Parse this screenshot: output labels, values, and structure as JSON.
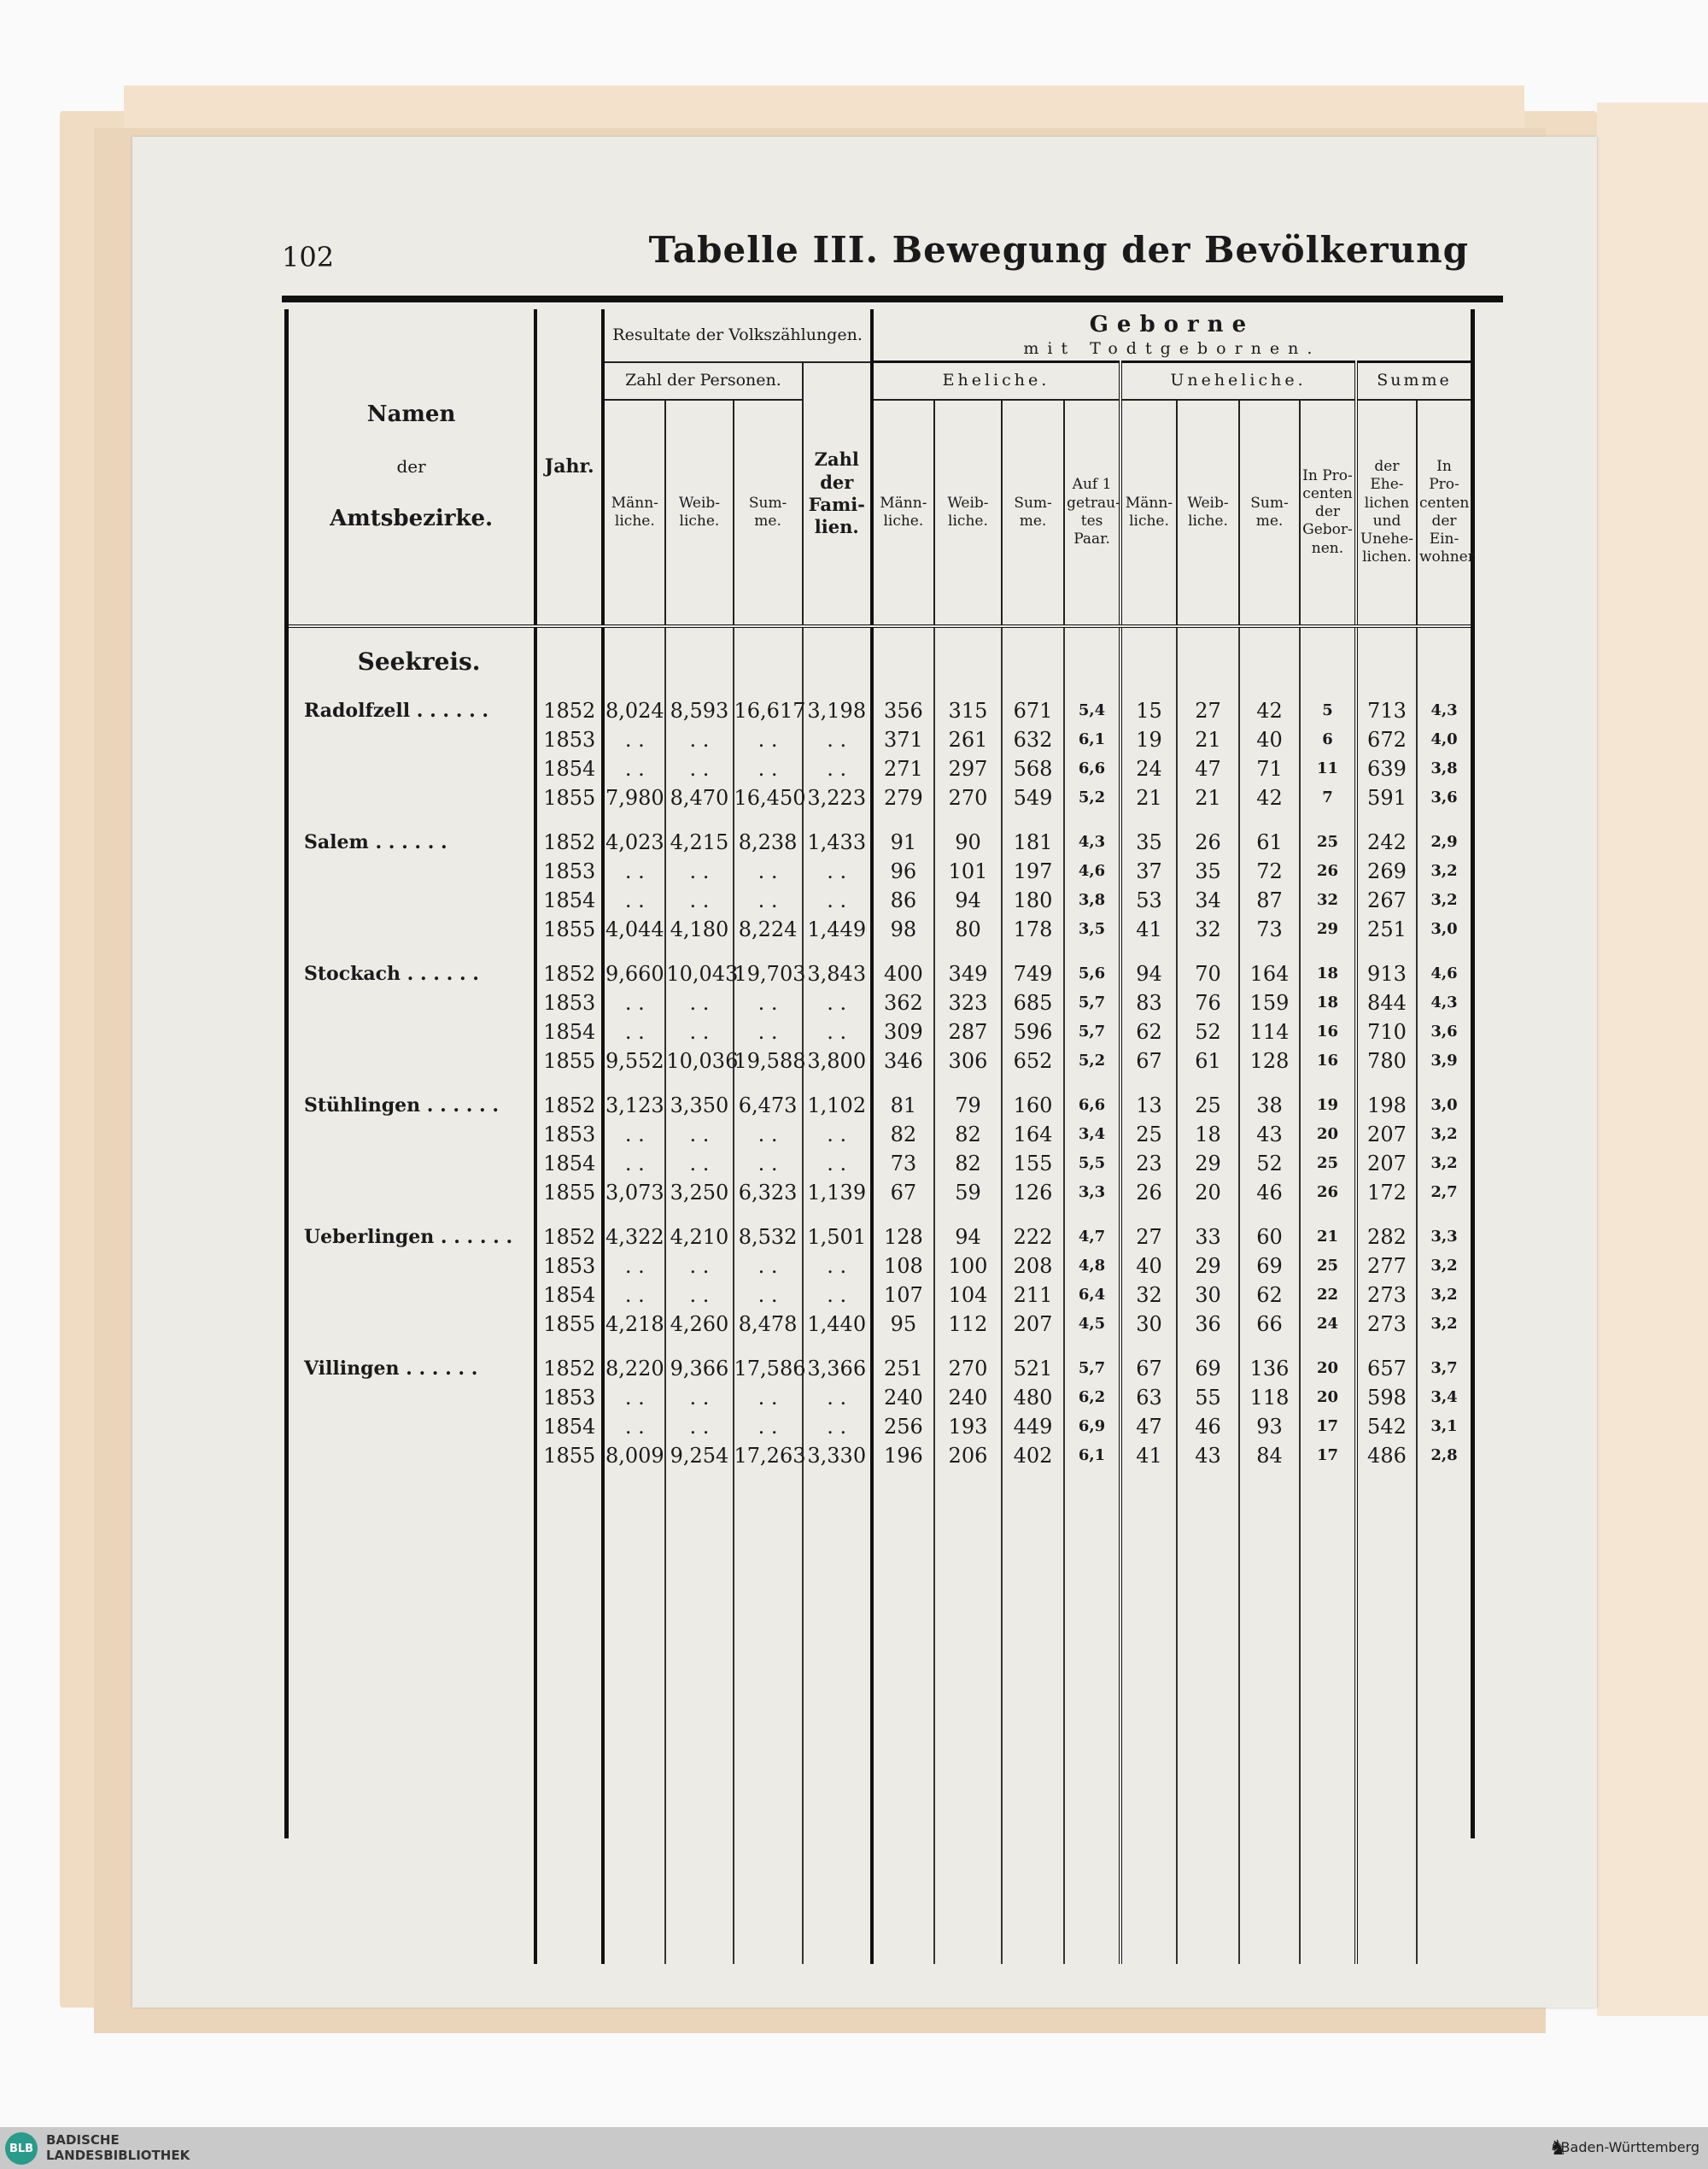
{
  "page": {
    "number": "102",
    "title": "Tabelle III. Bewegung der Bevölkerung"
  },
  "header": {
    "name": [
      "Namen",
      "der",
      "Amtsbezirke."
    ],
    "jahr": "Jahr.",
    "volks": "Resultate der Volkszählungen.",
    "personen": "Zahl der Personen.",
    "familien": "Zahl der Fami-lien.",
    "geborne": "Geborne",
    "geborne_sub": "mit Todtgebornen.",
    "eheliche": "Eheliche.",
    "uneheliche": "Uneheliche.",
    "summe": "Summe",
    "cols": [
      "Männ-liche.",
      "Weib-liche.",
      "Sum-me.",
      "Männ-liche.",
      "Weib-liche.",
      "Sum-me.",
      "Auf 1 getrau-tes Paar.",
      "Männ-liche.",
      "Weib-liche.",
      "Sum-me.",
      "In Pro-centen der Gebor-nen.",
      "der Ehe-lichen und Unehe-lichen.",
      "In Pro-centen der Ein-wohner"
    ]
  },
  "region": "Seekreis.",
  "groups": [
    {
      "name": "Radolfzell",
      "rows": [
        [
          "1852",
          "8,024",
          "8,593",
          "16,617",
          "3,198",
          "356",
          "315",
          "671",
          "5,4",
          "15",
          "27",
          "42",
          "5",
          "713",
          "4,3"
        ],
        [
          "1853",
          "..",
          "..",
          "..",
          "..",
          "371",
          "261",
          "632",
          "6,1",
          "19",
          "21",
          "40",
          "6",
          "672",
          "4,0"
        ],
        [
          "1854",
          "..",
          "..",
          "..",
          "..",
          "271",
          "297",
          "568",
          "6,6",
          "24",
          "47",
          "71",
          "11",
          "639",
          "3,8"
        ],
        [
          "1855",
          "7,980",
          "8,470",
          "16,450",
          "3,223",
          "279",
          "270",
          "549",
          "5,2",
          "21",
          "21",
          "42",
          "7",
          "591",
          "3,6"
        ]
      ]
    },
    {
      "name": "Salem",
      "rows": [
        [
          "1852",
          "4,023",
          "4,215",
          "8,238",
          "1,433",
          "91",
          "90",
          "181",
          "4,3",
          "35",
          "26",
          "61",
          "25",
          "242",
          "2,9"
        ],
        [
          "1853",
          "..",
          "..",
          "..",
          "..",
          "96",
          "101",
          "197",
          "4,6",
          "37",
          "35",
          "72",
          "26",
          "269",
          "3,2"
        ],
        [
          "1854",
          "..",
          "..",
          "..",
          "..",
          "86",
          "94",
          "180",
          "3,8",
          "53",
          "34",
          "87",
          "32",
          "267",
          "3,2"
        ],
        [
          "1855",
          "4,044",
          "4,180",
          "8,224",
          "1,449",
          "98",
          "80",
          "178",
          "3,5",
          "41",
          "32",
          "73",
          "29",
          "251",
          "3,0"
        ]
      ]
    },
    {
      "name": "Stockach",
      "rows": [
        [
          "1852",
          "9,660",
          "10,043",
          "19,703",
          "3,843",
          "400",
          "349",
          "749",
          "5,6",
          "94",
          "70",
          "164",
          "18",
          "913",
          "4,6"
        ],
        [
          "1853",
          "..",
          "..",
          "..",
          "..",
          "362",
          "323",
          "685",
          "5,7",
          "83",
          "76",
          "159",
          "18",
          "844",
          "4,3"
        ],
        [
          "1854",
          "..",
          "..",
          "..",
          "..",
          "309",
          "287",
          "596",
          "5,7",
          "62",
          "52",
          "114",
          "16",
          "710",
          "3,6"
        ],
        [
          "1855",
          "9,552",
          "10,036",
          "19,588",
          "3,800",
          "346",
          "306",
          "652",
          "5,2",
          "67",
          "61",
          "128",
          "16",
          "780",
          "3,9"
        ]
      ]
    },
    {
      "name": "Stühlingen",
      "rows": [
        [
          "1852",
          "3,123",
          "3,350",
          "6,473",
          "1,102",
          "81",
          "79",
          "160",
          "6,6",
          "13",
          "25",
          "38",
          "19",
          "198",
          "3,0"
        ],
        [
          "1853",
          "..",
          "..",
          "..",
          "..",
          "82",
          "82",
          "164",
          "3,4",
          "25",
          "18",
          "43",
          "20",
          "207",
          "3,2"
        ],
        [
          "1854",
          "..",
          "..",
          "..",
          "..",
          "73",
          "82",
          "155",
          "5,5",
          "23",
          "29",
          "52",
          "25",
          "207",
          "3,2"
        ],
        [
          "1855",
          "3,073",
          "3,250",
          "6,323",
          "1,139",
          "67",
          "59",
          "126",
          "3,3",
          "26",
          "20",
          "46",
          "26",
          "172",
          "2,7"
        ]
      ]
    },
    {
      "name": "Ueberlingen",
      "rows": [
        [
          "1852",
          "4,322",
          "4,210",
          "8,532",
          "1,501",
          "128",
          "94",
          "222",
          "4,7",
          "27",
          "33",
          "60",
          "21",
          "282",
          "3,3"
        ],
        [
          "1853",
          "..",
          "..",
          "..",
          "..",
          "108",
          "100",
          "208",
          "4,8",
          "40",
          "29",
          "69",
          "25",
          "277",
          "3,2"
        ],
        [
          "1854",
          "..",
          "..",
          "..",
          "..",
          "107",
          "104",
          "211",
          "6,4",
          "32",
          "30",
          "62",
          "22",
          "273",
          "3,2"
        ],
        [
          "1855",
          "4,218",
          "4,260",
          "8,478",
          "1,440",
          "95",
          "112",
          "207",
          "4,5",
          "30",
          "36",
          "66",
          "24",
          "273",
          "3,2"
        ]
      ]
    },
    {
      "name": "Villingen",
      "rows": [
        [
          "1852",
          "8,220",
          "9,366",
          "17,586",
          "3,366",
          "251",
          "270",
          "521",
          "5,7",
          "67",
          "69",
          "136",
          "20",
          "657",
          "3,7"
        ],
        [
          "1853",
          "..",
          "..",
          "..",
          "..",
          "240",
          "240",
          "480",
          "6,2",
          "63",
          "55",
          "118",
          "20",
          "598",
          "3,4"
        ],
        [
          "1854",
          "..",
          "..",
          "..",
          "..",
          "256",
          "193",
          "449",
          "6,9",
          "47",
          "46",
          "93",
          "17",
          "542",
          "3,1"
        ],
        [
          "1855",
          "8,009",
          "9,254",
          "17,263",
          "3,330",
          "196",
          "206",
          "402",
          "6,1",
          "41",
          "43",
          "84",
          "17",
          "486",
          "2,8"
        ]
      ]
    }
  ],
  "footer": {
    "library": [
      "BADISCHE",
      "LANDESBIBLIOTHEK"
    ],
    "logo": "BLB",
    "state": "Baden-Württemberg"
  }
}
